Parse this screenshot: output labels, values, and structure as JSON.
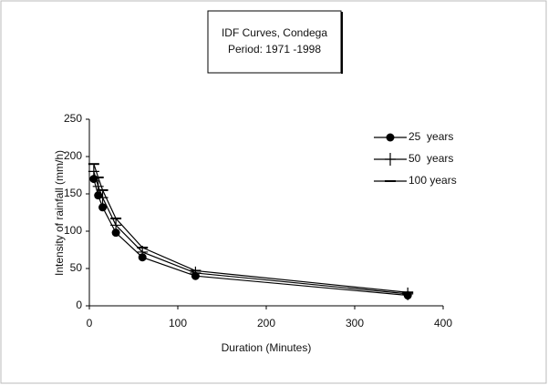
{
  "chart_data": {
    "type": "line",
    "title": "IDF Curves, Condega",
    "subtitle": "Period: 1971 -1998",
    "x_label": "Duration (Minutes)",
    "y_label": "Intensity of rainfall (mm/h)",
    "x": [
      5,
      10,
      15,
      30,
      60,
      120,
      360
    ],
    "series": [
      {
        "name": "25  years",
        "color": "#000000",
        "marker": "circle",
        "values": [
          170,
          148,
          132,
          98,
          65,
          40,
          14
        ]
      },
      {
        "name": "50  years",
        "color": "#000000",
        "marker": "plus",
        "values": [
          180,
          160,
          145,
          108,
          72,
          44,
          16
        ]
      },
      {
        "name": "100 years",
        "color": "#000000",
        "marker": "dash",
        "values": [
          190,
          172,
          155,
          117,
          78,
          47,
          18
        ]
      }
    ],
    "xlim": [
      0,
      400
    ],
    "xticks": [
      0,
      100,
      200,
      300,
      400
    ],
    "ylim": [
      0,
      250
    ],
    "yticks": [
      0,
      50,
      100,
      150,
      200,
      250
    ],
    "legend": "upper right",
    "grid": false
  }
}
